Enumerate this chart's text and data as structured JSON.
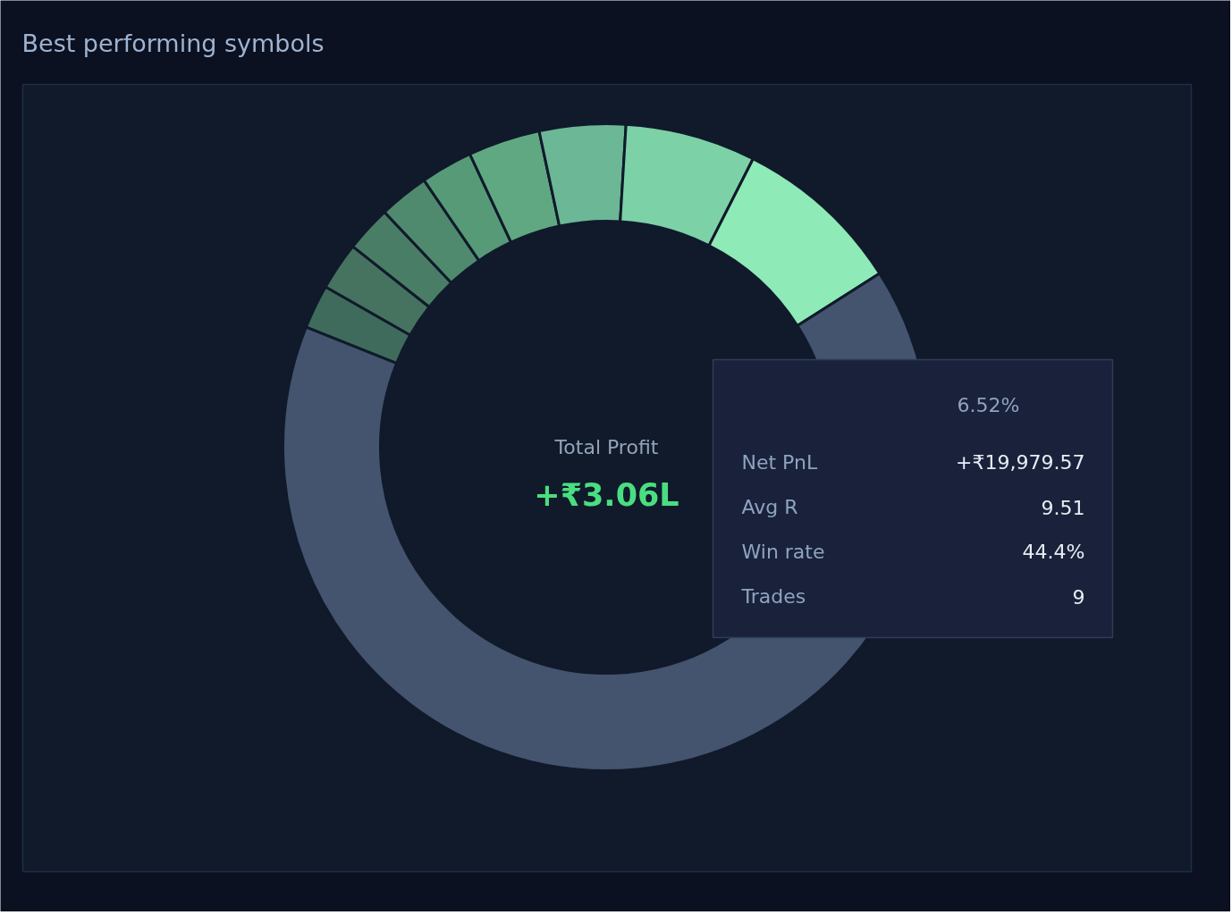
{
  "chart_data": {
    "type": "donut",
    "title": "Best performing symbols",
    "categories": [
      null,
      null,
      null,
      null,
      null,
      null,
      null,
      null,
      null,
      null
    ],
    "values": [
      2.2,
      2.4,
      2.3,
      2.5,
      2.6,
      3.6,
      4.3,
      6.52,
      8.5,
      65.08
    ],
    "colors": [
      "#3f6b5c",
      "#46735f",
      "#4a7d66",
      "#4f8a6e",
      "#579a78",
      "#60a882",
      "#6cb796",
      "#7dd1a6",
      "#8eeab7",
      "#44546e"
    ],
    "annotations": [
      "Total Profit",
      "+₹3.06L",
      "6.52%",
      "Net PnL",
      "+₹19,979.57",
      "Avg R",
      "9.51",
      "Win rate",
      "44.4%",
      "Trades",
      "9"
    ]
  }
}
